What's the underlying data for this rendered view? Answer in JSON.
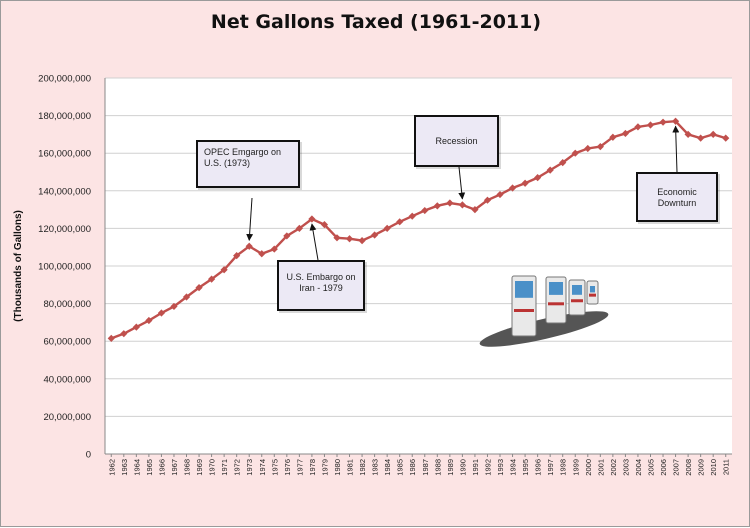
{
  "colors": {
    "background": "#fce4e4",
    "plot_area": "#ffffff",
    "series": "#c0504d",
    "gridline": "#d0d0d0"
  },
  "annotations": {
    "opec": "OPEC Emgargo on U.S.  (1973)",
    "recession": "Recession",
    "iran": "U.S. Embargo on Iran - 1979",
    "downturn": "Economic Downturn"
  },
  "image": {
    "icon": "gas-pumps-icon"
  },
  "chart_data": {
    "type": "line",
    "title": "Net Gallons Taxed (1961-2011)",
    "xlabel": "",
    "ylabel": "(Thousands of Gallons)",
    "ylim": [
      0,
      200000000
    ],
    "yticks": [
      "0",
      "20,000,000",
      "40,000,000",
      "60,000,000",
      "80,000,000",
      "100,000,000",
      "120,000,000",
      "140,000,000",
      "160,000,000",
      "180,000,000",
      "200,000,000"
    ],
    "grid": "horizontal",
    "categories": [
      "1962",
      "1963",
      "1964",
      "1965",
      "1966",
      "1967",
      "1968",
      "1969",
      "1970",
      "1971",
      "1972",
      "1973",
      "1974",
      "1975",
      "1976",
      "1977",
      "1978",
      "1979",
      "1980",
      "1981",
      "1982",
      "1983",
      "1984",
      "1985",
      "1986",
      "1987",
      "1988",
      "1989",
      "1990",
      "1991",
      "1992",
      "1993",
      "1994",
      "1995",
      "1996",
      "1997",
      "1998",
      "1999",
      "2000",
      "2001",
      "2002",
      "2003",
      "2004",
      "2005",
      "2006",
      "2007",
      "2008",
      "2009",
      "2010",
      "2011"
    ],
    "series": [
      {
        "values": [
          61500000,
          64000000,
          67500000,
          71000000,
          75000000,
          78500000,
          83500000,
          88500000,
          93000000,
          98000000,
          105500000,
          110500000,
          106500000,
          109000000,
          116000000,
          120000000,
          125000000,
          122000000,
          115000000,
          114500000,
          113500000,
          116500000,
          120000000,
          123500000,
          126500000,
          129500000,
          132000000,
          133500000,
          132500000,
          130000000,
          135000000,
          138000000,
          141500000,
          144000000,
          147000000,
          151000000,
          155000000,
          160000000,
          162500000,
          163500000,
          168500000,
          170500000,
          174000000,
          175000000,
          176500000,
          177000000,
          170000000,
          168000000,
          170000000,
          168000000
        ]
      }
    ]
  }
}
